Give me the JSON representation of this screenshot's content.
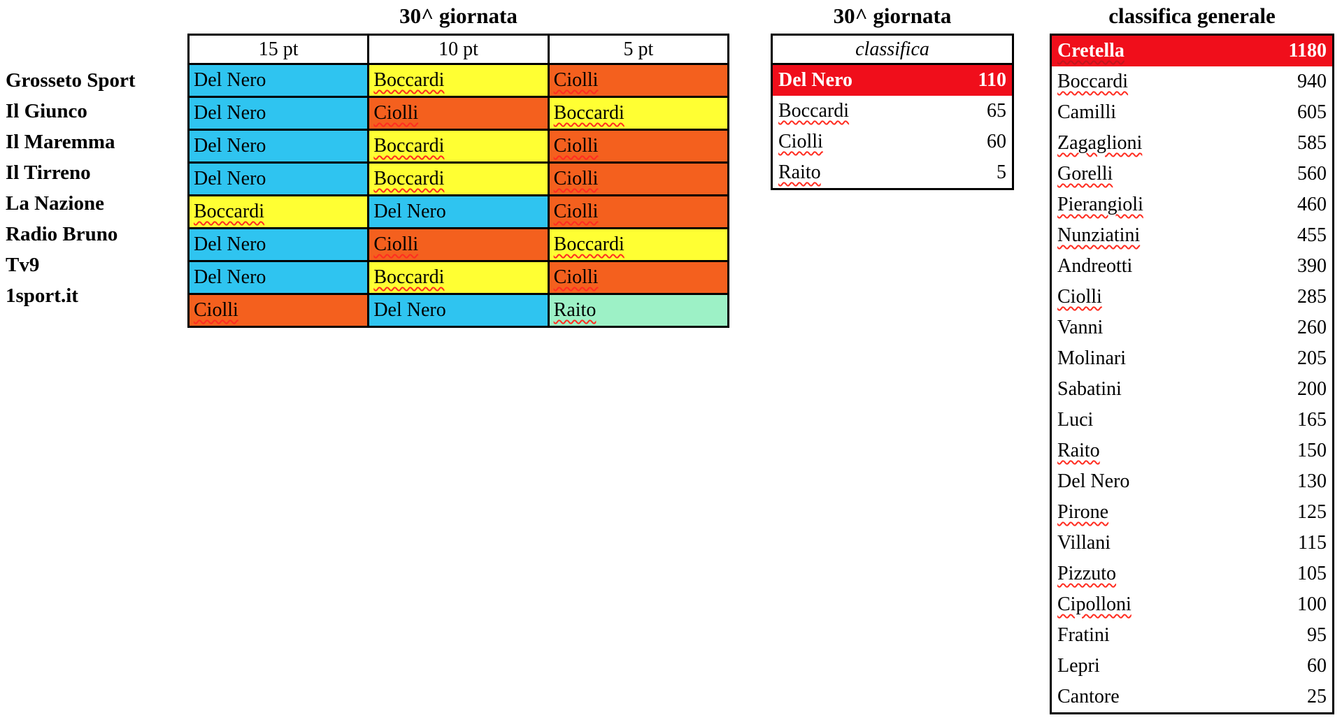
{
  "colors": {
    "cyan": "#2FC4F0",
    "yellow": "#FFFF33",
    "orange": "#F4601E",
    "mint": "#9DF1C6",
    "red": "#F00E1B",
    "squiggle": "#FF2D21",
    "squiggle_dark": "#C0151C",
    "border": "#000000",
    "highlight_text": "#FFFFFF"
  },
  "matchday_table": {
    "title": "30^ giornata",
    "column_headers": [
      "15 pt",
      "10 pt",
      "5 pt"
    ],
    "rows": [
      {
        "source": "Grosseto Sport",
        "picks": [
          {
            "name": "Del Nero",
            "color": "cyan",
            "misspelled": false
          },
          {
            "name": "Boccardi",
            "color": "yellow",
            "misspelled": true
          },
          {
            "name": "Ciolli",
            "color": "orange",
            "misspelled": true
          }
        ]
      },
      {
        "source": "Il Giunco",
        "picks": [
          {
            "name": "Del Nero",
            "color": "cyan",
            "misspelled": false
          },
          {
            "name": "Ciolli",
            "color": "orange",
            "misspelled": true
          },
          {
            "name": "Boccardi",
            "color": "yellow",
            "misspelled": true
          }
        ]
      },
      {
        "source": "Il Maremma",
        "picks": [
          {
            "name": "Del Nero",
            "color": "cyan",
            "misspelled": false
          },
          {
            "name": "Boccardi",
            "color": "yellow",
            "misspelled": true
          },
          {
            "name": "Ciolli",
            "color": "orange",
            "misspelled": true
          }
        ]
      },
      {
        "source": "Il Tirreno",
        "picks": [
          {
            "name": "Del Nero",
            "color": "cyan",
            "misspelled": false
          },
          {
            "name": "Boccardi",
            "color": "yellow",
            "misspelled": true
          },
          {
            "name": "Ciolli",
            "color": "orange",
            "misspelled": true
          }
        ]
      },
      {
        "source": "La Nazione",
        "picks": [
          {
            "name": "Boccardi",
            "color": "yellow",
            "misspelled": true
          },
          {
            "name": "Del Nero",
            "color": "cyan",
            "misspelled": false
          },
          {
            "name": "Ciolli",
            "color": "orange",
            "misspelled": true
          }
        ]
      },
      {
        "source": "Radio Bruno",
        "picks": [
          {
            "name": "Del Nero",
            "color": "cyan",
            "misspelled": false
          },
          {
            "name": "Ciolli",
            "color": "orange",
            "misspelled": true
          },
          {
            "name": "Boccardi",
            "color": "yellow",
            "misspelled": true
          }
        ]
      },
      {
        "source": "Tv9",
        "picks": [
          {
            "name": "Del Nero",
            "color": "cyan",
            "misspelled": false
          },
          {
            "name": "Boccardi",
            "color": "yellow",
            "misspelled": true
          },
          {
            "name": "Ciolli",
            "color": "orange",
            "misspelled": true
          }
        ]
      },
      {
        "source": "1sport.it",
        "picks": [
          {
            "name": "Ciolli",
            "color": "orange",
            "misspelled": true
          },
          {
            "name": "Del Nero",
            "color": "cyan",
            "misspelled": false
          },
          {
            "name": "Raito",
            "color": "mint",
            "misspelled": true
          }
        ]
      }
    ]
  },
  "matchday_ranking": {
    "title": "30^ giornata",
    "header": "classifica",
    "rows": [
      {
        "name": "Del Nero",
        "points": 110,
        "highlight": true,
        "misspelled": false
      },
      {
        "name": "Boccardi",
        "points": 65,
        "highlight": false,
        "misspelled": true
      },
      {
        "name": "Ciolli",
        "points": 60,
        "highlight": false,
        "misspelled": true
      },
      {
        "name": "Raito",
        "points": 5,
        "highlight": false,
        "misspelled": true
      }
    ]
  },
  "general_ranking": {
    "title": "classifica generale",
    "rows": [
      {
        "name": "Cretella",
        "points": 1180,
        "highlight": true,
        "misspelled": true
      },
      {
        "name": "Boccardi",
        "points": 940,
        "highlight": false,
        "misspelled": true
      },
      {
        "name": "Camilli",
        "points": 605,
        "highlight": false,
        "misspelled": false
      },
      {
        "name": "Zagaglioni",
        "points": 585,
        "highlight": false,
        "misspelled": true
      },
      {
        "name": "Gorelli",
        "points": 560,
        "highlight": false,
        "misspelled": true
      },
      {
        "name": "Pierangioli",
        "points": 460,
        "highlight": false,
        "misspelled": true
      },
      {
        "name": "Nunziatini",
        "points": 455,
        "highlight": false,
        "misspelled": true
      },
      {
        "name": "Andreotti",
        "points": 390,
        "highlight": false,
        "misspelled": false
      },
      {
        "name": "Ciolli",
        "points": 285,
        "highlight": false,
        "misspelled": true
      },
      {
        "name": "Vanni",
        "points": 260,
        "highlight": false,
        "misspelled": false
      },
      {
        "name": "Molinari",
        "points": 205,
        "highlight": false,
        "misspelled": false
      },
      {
        "name": "Sabatini",
        "points": 200,
        "highlight": false,
        "misspelled": false
      },
      {
        "name": "Luci",
        "points": 165,
        "highlight": false,
        "misspelled": false
      },
      {
        "name": "Raito",
        "points": 150,
        "highlight": false,
        "misspelled": true
      },
      {
        "name": "Del Nero",
        "points": 130,
        "highlight": false,
        "misspelled": false
      },
      {
        "name": "Pirone",
        "points": 125,
        "highlight": false,
        "misspelled": true
      },
      {
        "name": "Villani",
        "points": 115,
        "highlight": false,
        "misspelled": false
      },
      {
        "name": "Pizzuto",
        "points": 105,
        "highlight": false,
        "misspelled": true
      },
      {
        "name": "Cipolloni",
        "points": 100,
        "highlight": false,
        "misspelled": true
      },
      {
        "name": "Fratini",
        "points": 95,
        "highlight": false,
        "misspelled": false
      },
      {
        "name": "Lepri",
        "points": 60,
        "highlight": false,
        "misspelled": false
      },
      {
        "name": "Cantore",
        "points": 25,
        "highlight": false,
        "misspelled": false
      }
    ]
  }
}
